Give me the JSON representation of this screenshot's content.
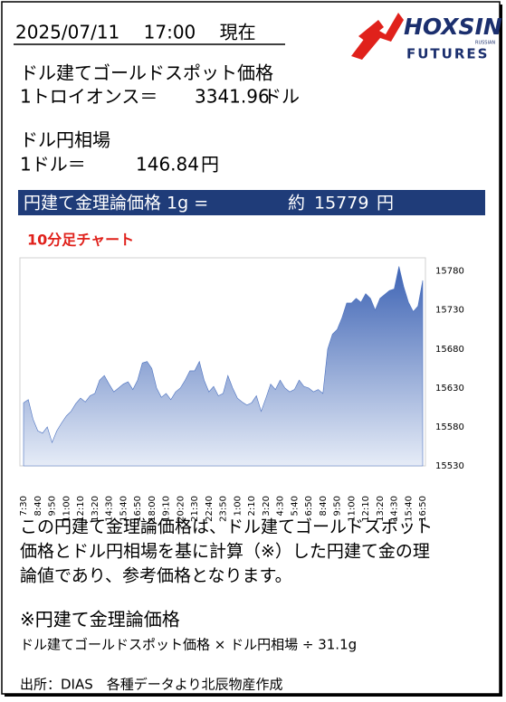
{
  "header": {
    "datetime": "2025/07/11　 17:00　 現在"
  },
  "logo": {
    "name": "HOXSIN",
    "sub": "FUTURES",
    "small": "RUSSIAN"
  },
  "gold": {
    "label": "ドル建てゴールドスポット価格",
    "unit_label": "1トロイオンス＝",
    "value": 3341.96,
    "unit": "ドル"
  },
  "fx": {
    "label": "ドル円相場",
    "unit_label": "1ドル＝",
    "value": 146.84,
    "unit": "円"
  },
  "theory": {
    "label": "円建て金理論価格 1g =",
    "approx": "約",
    "value": 15779,
    "unit": "円"
  },
  "chart_data": {
    "type": "area",
    "title": "10分足チャート",
    "color": "#4a70bf",
    "categories": [
      "7:30",
      null,
      null,
      "8:40",
      null,
      null,
      "9:50",
      null,
      null,
      "11:00",
      null,
      null,
      "12:10",
      null,
      null,
      "13:20",
      null,
      null,
      "14:30",
      null,
      null,
      "15:40",
      null,
      null,
      "16:50",
      null,
      null,
      "18:00",
      null,
      null,
      "19:10",
      null,
      null,
      "20:20",
      null,
      null,
      "21:30",
      null,
      null,
      "22:40",
      null,
      null,
      "23:50",
      null,
      null,
      "1:00",
      null,
      null,
      "2:10",
      null,
      null,
      "3:20",
      null,
      null,
      "4:30",
      null,
      null,
      "5:40",
      null,
      null,
      "6:50",
      null,
      null,
      "8:40",
      null,
      null,
      "9:50",
      null,
      null,
      "11:00",
      null,
      null,
      "12:10",
      null,
      null,
      "13:20",
      null,
      null,
      "14:30",
      null,
      null,
      "15:40",
      null,
      null,
      "16:50"
    ],
    "values": [
      15611,
      15615,
      15590,
      15575,
      15572,
      15580,
      15560,
      15575,
      15585,
      15594,
      15600,
      15610,
      15617,
      15612,
      15620,
      15623,
      15640,
      15646,
      15635,
      15625,
      15630,
      15635,
      15638,
      15628,
      15640,
      15662,
      15664,
      15655,
      15630,
      15618,
      15623,
      15615,
      15625,
      15630,
      15640,
      15652,
      15652,
      15664,
      15640,
      15625,
      15632,
      15620,
      15623,
      15646,
      15630,
      15617,
      15612,
      15608,
      15611,
      15620,
      15600,
      15617,
      15635,
      15628,
      15640,
      15630,
      15625,
      15628,
      15640,
      15632,
      15630,
      15625,
      15628,
      15623,
      15680,
      15699,
      15705,
      15720,
      15739,
      15739,
      15745,
      15740,
      15751,
      15745,
      15730,
      15745,
      15750,
      15755,
      15757,
      15786,
      15760,
      15740,
      15728,
      15735,
      15768
    ],
    "ylim": [
      15530,
      15797
    ],
    "yticks": [
      15530,
      15580,
      15630,
      15680,
      15730,
      15780
    ],
    "grid": false
  },
  "note": {
    "lines": [
      "この円建て金理論価格は、ドル建てゴールドスポット",
      "価格とドル円相場を基に計算（※）した円建て金の理",
      "論値であり、参考価格となります。"
    ]
  },
  "formula": {
    "title": "※円建て金理論価格",
    "text": "ドル建てゴールドスポット価格 × ドル円相場 ÷ 31.1g"
  },
  "source": "出所：DIAS　各種データより北辰物産作成"
}
